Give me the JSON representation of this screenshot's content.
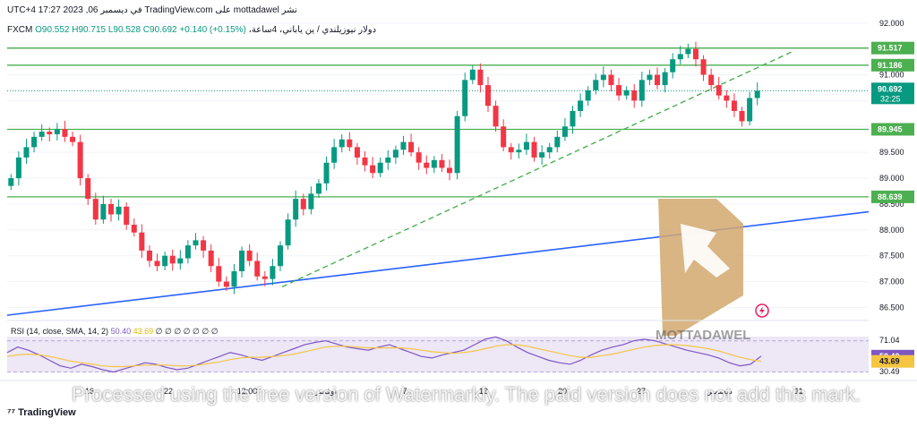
{
  "header": {
    "publish_line": "نشر mottadawel على TradingView.com في ديسمبر 06, 2023 17:27 UTC+4",
    "symbol_line": "دولار نيوزيلندي / ين ياباني، 4ساعة، FXCM",
    "ohlc": "O90.552 H90.715 L90.528 C90.692 +0.140 (+0.15%)"
  },
  "rsi_header": {
    "label": "RSI (14, close, SMA, 14, 2)",
    "rsi_value": "50.40",
    "sma_value": "43.69",
    "placeholders": "∅ ∅ ∅ ∅ ∅ ∅ ∅"
  },
  "branding": {
    "tradingview_logo": "TradingView",
    "watermark_brand": "MOTTADAWEL",
    "watermarkly_note": "Processed using the free version of Watermarkly. The paid version does not add this mark."
  },
  "colors": {
    "up": "#089981",
    "down": "#f23645",
    "horizontal_levels": "#4caf50",
    "trend_dashed": "#4caf50",
    "trend_solid": "#2962ff",
    "rsi_line": "#7e57c2",
    "rsi_sma": "#f5c542",
    "rsi_band": "#ede7f6",
    "logo_shape": "#d2a86e"
  },
  "chart_data": [
    {
      "type": "candlestick",
      "title": "",
      "y_axis": {
        "range": [
          86.3,
          92.1
        ],
        "tick_labels": [
          "92.000",
          "91.500",
          "91.000",
          "90.500",
          "90.000",
          "89.500",
          "89.000",
          "88.500",
          "88.000",
          "87.500",
          "87.000",
          "86.500"
        ]
      },
      "x_axis": {
        "tick_labels": [
          "16",
          "22",
          "12:00",
          "نوفمبر",
          "7",
          "13",
          "20",
          "27",
          "ديسمبر",
          "11"
        ]
      },
      "levels": [
        91.517,
        91.186,
        89.945,
        88.639
      ],
      "price_label": {
        "price": "90.692",
        "countdown": "32:25"
      },
      "close_path": [
        89.0,
        89.4,
        89.6,
        89.8,
        89.9,
        89.85,
        89.95,
        89.8,
        89.7,
        89.0,
        88.6,
        88.2,
        88.5,
        88.3,
        88.45,
        88.1,
        87.95,
        87.6,
        87.4,
        87.3,
        87.5,
        87.35,
        87.45,
        87.7,
        87.8,
        87.6,
        87.3,
        87.0,
        86.9,
        87.2,
        87.6,
        87.4,
        87.1,
        87.05,
        87.3,
        87.7,
        88.2,
        88.6,
        88.4,
        88.7,
        88.9,
        89.3,
        89.6,
        89.75,
        89.6,
        89.4,
        89.25,
        89.1,
        89.3,
        89.4,
        89.55,
        89.7,
        89.5,
        89.3,
        89.2,
        89.35,
        89.2,
        89.1,
        90.2,
        90.9,
        91.1,
        90.8,
        90.4,
        90.0,
        89.6,
        89.5,
        89.55,
        89.7,
        89.4,
        89.5,
        89.6,
        89.8,
        90.0,
        90.3,
        90.5,
        90.7,
        90.9,
        91.0,
        90.8,
        90.6,
        90.7,
        90.5,
        90.9,
        91.0,
        90.8,
        91.05,
        91.3,
        91.4,
        91.5,
        91.3,
        91.0,
        90.8,
        90.6,
        90.5,
        90.3,
        90.1,
        90.55,
        90.692
      ]
    },
    {
      "type": "line",
      "title": "",
      "y_axis": {
        "tick_labels": [
          "71.04",
          "50.40",
          "43.69",
          "30.49"
        ]
      },
      "series": [
        {
          "name": "RSI",
          "values": [
            55,
            62,
            58,
            52,
            45,
            38,
            35,
            40,
            37,
            33,
            30,
            34,
            38,
            42,
            40,
            36,
            33,
            35,
            40,
            45,
            50,
            55,
            52,
            48,
            45,
            50,
            55,
            60,
            65,
            68,
            70,
            66,
            62,
            60,
            58,
            62,
            65,
            60,
            55,
            50,
            48,
            52,
            55,
            58,
            65,
            72,
            75,
            70,
            62,
            55,
            50,
            45,
            42,
            40,
            45,
            52,
            58,
            62,
            65,
            70,
            72,
            70,
            66,
            62,
            58,
            55,
            52,
            48,
            42,
            38,
            40,
            50.4
          ]
        },
        {
          "name": "SMA",
          "values": [
            50,
            52,
            53,
            52,
            50,
            47,
            44,
            42,
            40,
            38,
            37,
            37,
            38,
            39,
            39,
            39,
            38,
            38,
            39,
            41,
            43,
            46,
            48,
            49,
            49,
            50,
            51,
            53,
            56,
            59,
            62,
            63,
            63,
            62,
            61,
            61,
            61,
            61,
            60,
            58,
            56,
            55,
            54,
            55,
            57,
            60,
            63,
            65,
            65,
            63,
            60,
            57,
            54,
            51,
            49,
            49,
            51,
            53,
            56,
            59,
            62,
            64,
            65,
            65,
            64,
            62,
            60,
            57,
            53,
            49,
            46,
            43.69
          ]
        }
      ]
    }
  ]
}
